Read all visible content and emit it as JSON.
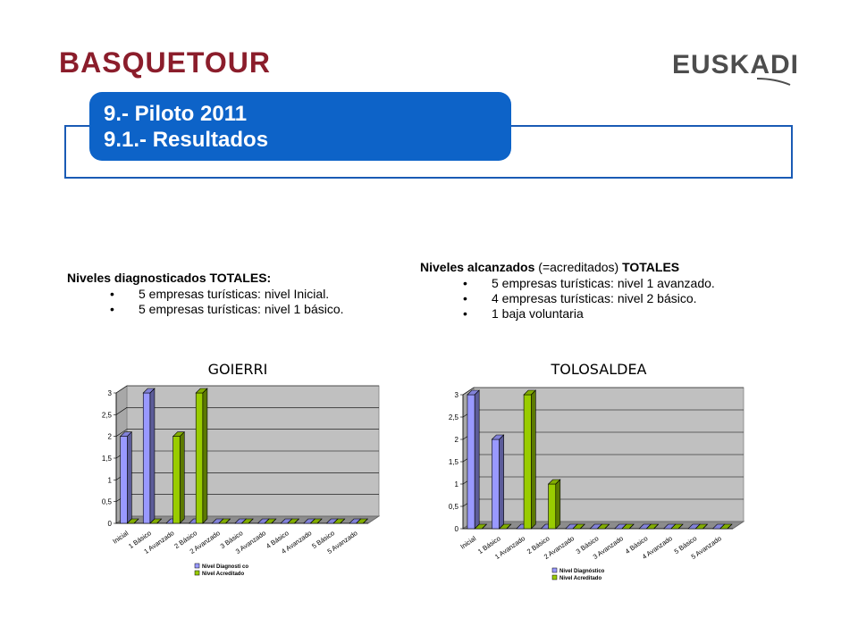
{
  "header": {
    "logo_left": "BASQUETOUR",
    "logo_right": "EUSKADI",
    "title_line1": "9.- Piloto 2011",
    "title_line2": "9.1.- Resultados"
  },
  "left_block": {
    "heading": "Niveles diagnosticados TOTALES:",
    "items": [
      "5 empresas turísticas: nivel Inicial.",
      "5 empresas turísticas: nivel 1 básico."
    ]
  },
  "right_block": {
    "heading_bold_1": "Niveles alcanzados",
    "heading_normal": " (=acreditados) ",
    "heading_bold_2": "TOTALES",
    "items": [
      "5 empresas turísticas: nivel 1 avanzado.",
      "4 empresas turísticas:  nivel 2 básico.",
      "1 baja voluntaria"
    ]
  },
  "bullet": "•",
  "colors": {
    "series_diag": "#9999ff",
    "series_acred": "#99cc00",
    "plot_bg": "#c0c0c0",
    "title_tab": "#0d63c8",
    "frame": "#1a5bb5",
    "logo_left": "#8b1d2b"
  },
  "chart_data": [
    {
      "type": "bar",
      "title": "GOIERRI",
      "categories": [
        "Inicial",
        "1 Básico",
        "1 Avanzado",
        "2 Básico",
        "2 Avanzado",
        "3 Básico",
        "3 Avanzado",
        "4 Básico",
        "4 Avanzado",
        "5 Básico",
        "5 Avanzado"
      ],
      "series": [
        {
          "name": "Nivel Diagnosti co",
          "values": [
            2,
            3,
            0,
            0,
            0,
            0,
            0,
            0,
            0,
            0,
            0
          ]
        },
        {
          "name": "Nivel Acreditado",
          "values": [
            0,
            0,
            2,
            3,
            0,
            0,
            0,
            0,
            0,
            0,
            0
          ]
        }
      ],
      "y_ticks": [
        "0",
        "0,5",
        "1",
        "1,5",
        "2",
        "2,5",
        "3"
      ],
      "ylim": [
        0,
        3
      ],
      "grid": true,
      "legend": "bottom"
    },
    {
      "type": "bar",
      "title": "TOLOSALDEA",
      "categories": [
        "Inicial",
        "1 Básico",
        "1 Avanzado",
        "2 Básico",
        "2 Avanzado",
        "3 Básico",
        "3 Avanzado",
        "4 Básico",
        "4 Avanzado",
        "5 Básico",
        "5 Avanzado"
      ],
      "series": [
        {
          "name": "Nivel Diagnóstico",
          "values": [
            3,
            2,
            0,
            0,
            0,
            0,
            0,
            0,
            0,
            0,
            0
          ]
        },
        {
          "name": "Nivel Acreditado",
          "values": [
            0,
            0,
            3,
            1,
            0,
            0,
            0,
            0,
            0,
            0,
            0
          ]
        }
      ],
      "y_ticks": [
        "0",
        "0,5",
        "1",
        "1,5",
        "2",
        "2,5",
        "3"
      ],
      "ylim": [
        0,
        3
      ],
      "grid": true,
      "legend": "bottom"
    }
  ]
}
